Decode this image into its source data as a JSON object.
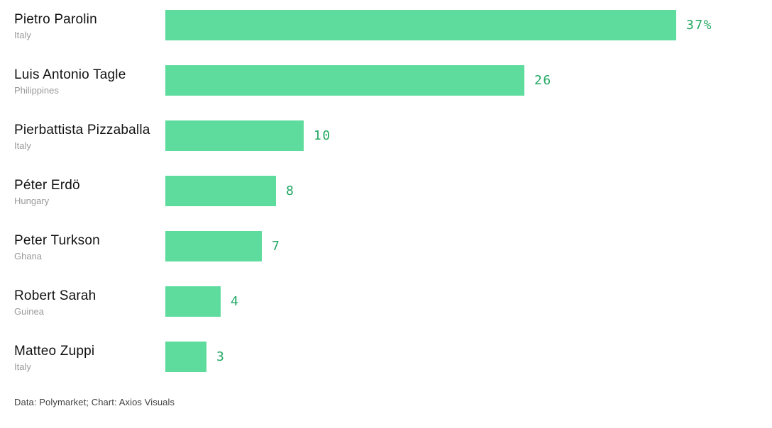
{
  "chart_data": {
    "type": "bar",
    "orientation": "horizontal",
    "title": "",
    "xlabel": "",
    "ylabel": "",
    "xlim": [
      0,
      37
    ],
    "grid": false,
    "legend": false,
    "categories": [
      "Pietro Parolin",
      "Luis Antonio Tagle",
      "Pierbattista Pizzaballa",
      "Péter Erdö",
      "Peter Turkson",
      "Robert Sarah",
      "Matteo Zuppi"
    ],
    "subcategories": [
      "Italy",
      "Philippines",
      "Italy",
      "Hungary",
      "Ghana",
      "Guinea",
      "Italy"
    ],
    "values": [
      37,
      26,
      10,
      8,
      7,
      4,
      3
    ],
    "value_labels": [
      "37%",
      "26",
      "10",
      "8",
      "7",
      "4",
      "3"
    ],
    "unit": "%"
  },
  "footer": {
    "text": "Data: Polymarket; Chart: Axios Visuals"
  },
  "colors": {
    "bar": "#5edc9e",
    "value_text": "#22a862",
    "name_text": "#121212",
    "country_text": "#999999",
    "footer_text": "#404040",
    "background": "#ffffff"
  }
}
